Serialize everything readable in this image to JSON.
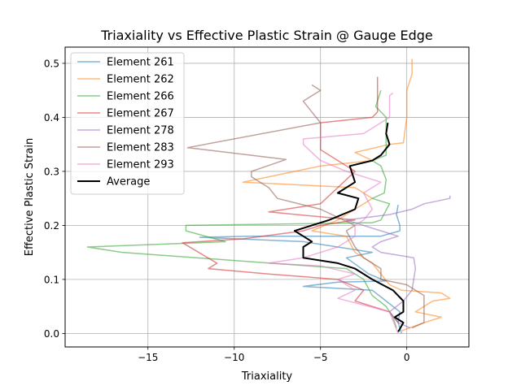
{
  "chart_data": {
    "type": "line",
    "title": "Triaxiality vs Effective Plastic Strain @ Gauge Edge",
    "xlabel": "Triaxiality",
    "ylabel": "Effective Plastic Strain",
    "xlim": [
      -19.8,
      3.6
    ],
    "ylim": [
      -0.025,
      0.53
    ],
    "xticks": [
      -15,
      -10,
      -5,
      0
    ],
    "xtick_labels": [
      "−15",
      "−10",
      "−5",
      "0"
    ],
    "yticks": [
      0.0,
      0.1,
      0.2,
      0.3,
      0.4,
      0.5
    ],
    "ytick_labels": [
      "0.0",
      "0.1",
      "0.2",
      "0.3",
      "0.4",
      "0.5"
    ],
    "grid": true,
    "legend_position": "upper-left",
    "series": [
      {
        "name": "Element 261",
        "color": "#1f77b4",
        "alpha": 0.55,
        "width": 1.5,
        "points": [
          [
            -0.3,
            0.0
          ],
          [
            -0.5,
            0.02
          ],
          [
            -0.4,
            0.04
          ],
          [
            -1.2,
            0.06
          ],
          [
            -2.0,
            0.08
          ],
          [
            -6.0,
            0.087
          ],
          [
            -4.0,
            0.095
          ],
          [
            -1.2,
            0.097
          ],
          [
            -2.2,
            0.11
          ],
          [
            -3.5,
            0.14
          ],
          [
            -2.0,
            0.15
          ],
          [
            -6.0,
            0.17
          ],
          [
            -12.0,
            0.178
          ],
          [
            -9.0,
            0.18
          ],
          [
            -1.5,
            0.18
          ],
          [
            -0.4,
            0.19
          ],
          [
            -0.4,
            0.2
          ],
          [
            -0.6,
            0.22
          ],
          [
            -0.5,
            0.238
          ]
        ]
      },
      {
        "name": "Element 262",
        "color": "#ff7f0e",
        "alpha": 0.55,
        "width": 1.5,
        "points": [
          [
            -0.3,
            0.005
          ],
          [
            1.0,
            0.02
          ],
          [
            2.0,
            0.03
          ],
          [
            0.5,
            0.04
          ],
          [
            1.5,
            0.06
          ],
          [
            2.5,
            0.065
          ],
          [
            2.0,
            0.075
          ],
          [
            -0.3,
            0.08
          ],
          [
            -1.0,
            0.09
          ],
          [
            -2.0,
            0.13
          ],
          [
            -3.0,
            0.15
          ],
          [
            -3.5,
            0.18
          ],
          [
            -5.5,
            0.19
          ],
          [
            -4.0,
            0.21
          ],
          [
            -2.0,
            0.25
          ],
          [
            -3.0,
            0.27
          ],
          [
            -9.5,
            0.28
          ],
          [
            -8.0,
            0.29
          ],
          [
            -5.0,
            0.31
          ],
          [
            -2.0,
            0.32
          ],
          [
            -3.0,
            0.335
          ],
          [
            -1.0,
            0.35
          ],
          [
            -0.2,
            0.353
          ],
          [
            0.0,
            0.4
          ],
          [
            0.0,
            0.45
          ],
          [
            0.3,
            0.48
          ],
          [
            0.3,
            0.508
          ]
        ]
      },
      {
        "name": "Element 266",
        "color": "#2ca02c",
        "alpha": 0.55,
        "width": 1.5,
        "points": [
          [
            -0.6,
            0.01
          ],
          [
            -0.8,
            0.03
          ],
          [
            -1.2,
            0.05
          ],
          [
            -2.0,
            0.07
          ],
          [
            -2.5,
            0.1
          ],
          [
            -3.5,
            0.12
          ],
          [
            -10.0,
            0.135
          ],
          [
            -16.5,
            0.15
          ],
          [
            -18.5,
            0.16
          ],
          [
            -12.0,
            0.168
          ],
          [
            -10.5,
            0.17
          ],
          [
            -12.8,
            0.19
          ],
          [
            -12.8,
            0.2
          ],
          [
            -6.0,
            0.203
          ],
          [
            -2.0,
            0.205
          ],
          [
            -1.5,
            0.21
          ],
          [
            -1.0,
            0.24
          ],
          [
            -2.0,
            0.25
          ],
          [
            -1.3,
            0.26
          ],
          [
            -1.2,
            0.285
          ],
          [
            -1.5,
            0.31
          ],
          [
            -2.0,
            0.32
          ],
          [
            -1.2,
            0.33
          ],
          [
            -1.2,
            0.4
          ],
          [
            -1.8,
            0.42
          ],
          [
            -1.5,
            0.45
          ]
        ]
      },
      {
        "name": "Element 267",
        "color": "#d62728",
        "alpha": 0.55,
        "width": 1.5,
        "points": [
          [
            -0.5,
            0.02
          ],
          [
            -1.0,
            0.04
          ],
          [
            -3.0,
            0.06
          ],
          [
            -2.5,
            0.08
          ],
          [
            -4.0,
            0.1
          ],
          [
            -8.0,
            0.11
          ],
          [
            -11.5,
            0.12
          ],
          [
            -11.0,
            0.13
          ],
          [
            -13.0,
            0.168
          ],
          [
            -9.5,
            0.175
          ],
          [
            -6.0,
            0.19
          ],
          [
            -5.0,
            0.2
          ],
          [
            -3.0,
            0.21
          ],
          [
            -8.0,
            0.225
          ],
          [
            -5.0,
            0.24
          ],
          [
            -4.0,
            0.27
          ],
          [
            -3.0,
            0.3
          ],
          [
            -5.0,
            0.34
          ],
          [
            -5.0,
            0.39
          ],
          [
            -2.0,
            0.4
          ],
          [
            -1.7,
            0.41
          ],
          [
            -1.7,
            0.475
          ]
        ]
      },
      {
        "name": "Element 278",
        "color": "#9467bd",
        "alpha": 0.55,
        "width": 1.5,
        "points": [
          [
            0.2,
            0.01
          ],
          [
            -0.5,
            0.02
          ],
          [
            -1.0,
            0.04
          ],
          [
            -0.2,
            0.06
          ],
          [
            0.3,
            0.08
          ],
          [
            0.5,
            0.12
          ],
          [
            0.4,
            0.14
          ],
          [
            -1.5,
            0.15
          ],
          [
            -2.0,
            0.16
          ],
          [
            -1.5,
            0.17
          ],
          [
            -0.5,
            0.18
          ],
          [
            -1.5,
            0.19
          ],
          [
            -3.5,
            0.21
          ],
          [
            -1.0,
            0.22
          ],
          [
            0.3,
            0.23
          ],
          [
            1.0,
            0.24
          ],
          [
            2.5,
            0.25
          ],
          [
            2.5,
            0.255
          ]
        ]
      },
      {
        "name": "Element 283",
        "color": "#8c564b",
        "alpha": 0.55,
        "width": 1.5,
        "points": [
          [
            0.3,
            0.01
          ],
          [
            1.0,
            0.02
          ],
          [
            1.0,
            0.045
          ],
          [
            1.0,
            0.07
          ],
          [
            0.0,
            0.09
          ],
          [
            -1.5,
            0.1
          ],
          [
            -1.5,
            0.12
          ],
          [
            -2.5,
            0.14
          ],
          [
            -3.0,
            0.16
          ],
          [
            -3.5,
            0.19
          ],
          [
            -3.0,
            0.2
          ],
          [
            -5.0,
            0.23
          ],
          [
            -7.5,
            0.25
          ],
          [
            -8.0,
            0.27
          ],
          [
            -9.0,
            0.29
          ],
          [
            -9.0,
            0.3
          ],
          [
            -7.0,
            0.322
          ],
          [
            -12.7,
            0.344
          ],
          [
            -5.0,
            0.39
          ],
          [
            -5.5,
            0.41
          ],
          [
            -6.0,
            0.43
          ],
          [
            -5.0,
            0.45
          ],
          [
            -5.5,
            0.46
          ]
        ]
      },
      {
        "name": "Element 293",
        "color": "#e377c2",
        "alpha": 0.55,
        "width": 1.5,
        "points": [
          [
            -0.5,
            0.0
          ],
          [
            -1.0,
            0.04
          ],
          [
            -4.0,
            0.065
          ],
          [
            -3.0,
            0.08
          ],
          [
            -4.0,
            0.1
          ],
          [
            -3.0,
            0.11
          ],
          [
            -5.0,
            0.125
          ],
          [
            -8.0,
            0.13
          ],
          [
            -6.0,
            0.14
          ],
          [
            -4.0,
            0.16
          ],
          [
            -3.0,
            0.18
          ],
          [
            -3.0,
            0.2
          ],
          [
            -2.5,
            0.21
          ],
          [
            -2.0,
            0.23
          ],
          [
            -2.5,
            0.26
          ],
          [
            -1.5,
            0.28
          ],
          [
            -3.5,
            0.3
          ],
          [
            -5.0,
            0.32
          ],
          [
            -6.0,
            0.35
          ],
          [
            -6.0,
            0.36
          ],
          [
            -2.5,
            0.37
          ],
          [
            -1.0,
            0.4
          ],
          [
            -1.0,
            0.44
          ],
          [
            -0.8,
            0.445
          ]
        ]
      },
      {
        "name": "Average",
        "color": "#000000",
        "alpha": 1.0,
        "width": 2.0,
        "points": [
          [
            -0.5,
            0.003
          ],
          [
            -0.2,
            0.02
          ],
          [
            -0.7,
            0.03
          ],
          [
            -0.2,
            0.04
          ],
          [
            -0.2,
            0.06
          ],
          [
            -0.8,
            0.08
          ],
          [
            -2.0,
            0.1
          ],
          [
            -3.0,
            0.12
          ],
          [
            -4.0,
            0.13
          ],
          [
            -6.0,
            0.14
          ],
          [
            -6.0,
            0.16
          ],
          [
            -5.5,
            0.17
          ],
          [
            -6.0,
            0.18
          ],
          [
            -6.5,
            0.19
          ],
          [
            -4.5,
            0.21
          ],
          [
            -3.0,
            0.23
          ],
          [
            -2.8,
            0.25
          ],
          [
            -4.0,
            0.26
          ],
          [
            -3.0,
            0.28
          ],
          [
            -3.3,
            0.31
          ],
          [
            -2.0,
            0.32
          ],
          [
            -1.5,
            0.33
          ],
          [
            -1.0,
            0.35
          ],
          [
            -1.2,
            0.37
          ],
          [
            -1.1,
            0.39
          ]
        ]
      }
    ]
  }
}
